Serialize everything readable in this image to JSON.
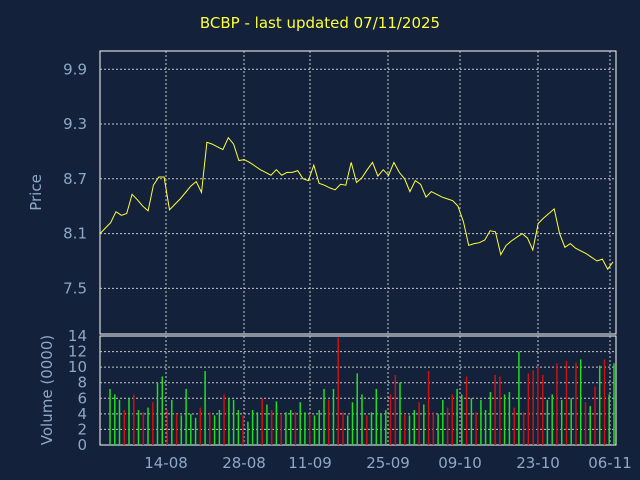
{
  "colors": {
    "background": "#13213a",
    "title": "#ffff3b",
    "axis_text": "#8ea8c8",
    "frame": "#ffffff",
    "grid": "#c8c8c8",
    "price_line": "#ffff3b",
    "volume_up": "#22dd22",
    "volume_down": "#cc1111"
  },
  "chart_data": [
    {
      "type": "line",
      "title": "BCBP - last updated 07/11/2025",
      "xlabel": "",
      "ylabel": "Price",
      "ylim": [
        7.0,
        10.1
      ],
      "yticks": [
        9.9,
        9.3,
        8.7,
        8.1,
        7.5
      ],
      "ytick_labels": [
        "9.9",
        "9.3",
        "8.7",
        "8.1",
        "7.5"
      ],
      "xlim": [
        0,
        86
      ],
      "xticks": [
        11,
        24,
        35,
        48,
        60,
        73,
        85
      ],
      "xtick_labels": [
        "14-08",
        "28-08",
        "11-09",
        "25-09",
        "09-10",
        "23-10",
        "06-11"
      ],
      "grid": true,
      "series": [
        {
          "values": [
            8.1,
            8.16,
            8.22,
            8.34,
            8.3,
            8.32,
            8.53,
            8.47,
            8.4,
            8.35,
            8.63,
            8.72,
            8.72,
            8.36,
            8.42,
            8.48,
            8.55,
            8.62,
            8.67,
            8.55,
            9.1,
            9.08,
            9.05,
            9.02,
            9.15,
            9.08,
            8.9,
            8.91,
            8.88,
            8.84,
            8.8,
            8.77,
            8.74,
            8.8,
            8.74,
            8.77,
            8.77,
            8.79,
            8.7,
            8.68,
            8.85,
            8.65,
            8.63,
            8.6,
            8.58,
            8.64,
            8.63,
            8.88,
            8.66,
            8.71,
            8.8,
            8.88,
            8.73,
            8.8,
            8.74,
            8.88,
            8.77,
            8.7,
            8.56,
            8.68,
            8.64,
            8.5,
            8.56,
            8.53,
            8.5,
            8.48,
            8.46,
            8.4,
            8.23,
            7.97,
            7.99,
            8.0,
            8.03,
            8.13,
            8.12,
            7.87,
            7.97,
            8.02,
            8.06,
            8.1,
            8.05,
            7.92,
            8.21,
            8.27,
            8.32,
            8.37,
            8.1,
            7.95,
            7.99,
            7.94,
            7.91,
            7.88,
            7.84,
            7.8,
            7.82,
            7.71,
            7.79
          ]
        }
      ]
    },
    {
      "type": "bar",
      "title": "",
      "xlabel": "",
      "ylabel": "Volume (0000)",
      "ylim": [
        0,
        14
      ],
      "yticks": [
        0,
        2,
        4,
        6,
        8,
        10,
        12,
        14
      ],
      "ytick_labels": [
        "0",
        "2",
        "4",
        "6",
        "8",
        "10",
        "12",
        "14"
      ],
      "grid": true,
      "series": [
        {
          "values": [
            7.2,
            6.5,
            5.8,
            4.5,
            6.0,
            6.5,
            4.5,
            4.2,
            4.8,
            5.5,
            8.0,
            8.8,
            4.5,
            5.8,
            4.0,
            3.8,
            7.2,
            4.0,
            3.5,
            4.8,
            9.5,
            4.2,
            3.8,
            4.5,
            6.5,
            6.0,
            5.8,
            4.5,
            3.8,
            3.0,
            4.5,
            4.2,
            6.0,
            5.2,
            4.5,
            5.6,
            4.0,
            4.2,
            4.5,
            4.2,
            5.5,
            4.2,
            4.0,
            3.8,
            4.5,
            7.2,
            5.8,
            7.2,
            13.8,
            4.2,
            3.8,
            5.5,
            9.2,
            6.5,
            3.8,
            4.2,
            7.2,
            4.0,
            4.5,
            6.5,
            9.0,
            8.0,
            4.0,
            3.8,
            4.5,
            5.5,
            5.2,
            9.5,
            4.2,
            4.0,
            5.8,
            4.8,
            6.5,
            7.2,
            6.5,
            8.8,
            6.0,
            4.2,
            5.8,
            4.5,
            6.8,
            9.0,
            8.8,
            6.5,
            6.8,
            4.8,
            12.0,
            4.2,
            9.2,
            9.6,
            10.0,
            9.0,
            5.8,
            6.5,
            10.5,
            5.8,
            10.8,
            6.0,
            10.6,
            11.0,
            5.5,
            5.0,
            7.5,
            10.2,
            11.0,
            6.5,
            10.5
          ],
          "directions": [
            "u",
            "u",
            "u",
            "d",
            "u",
            "d",
            "u",
            "d",
            "u",
            "d",
            "u",
            "u",
            "d",
            "u",
            "d",
            "u",
            "u",
            "u",
            "u",
            "d",
            "u",
            "d",
            "u",
            "u",
            "d",
            "u",
            "u",
            "u",
            "d",
            "u",
            "u",
            "u",
            "d",
            "u",
            "d",
            "u",
            "d",
            "u",
            "u",
            "d",
            "u",
            "u",
            "d",
            "u",
            "u",
            "u",
            "d",
            "u",
            "d",
            "d",
            "u",
            "u",
            "u",
            "u",
            "d",
            "u",
            "u",
            "u",
            "u",
            "d",
            "d",
            "u",
            "d",
            "u",
            "u",
            "d",
            "u",
            "d",
            "d",
            "u",
            "u",
            "d",
            "d",
            "u",
            "u",
            "d",
            "u",
            "d",
            "u",
            "u",
            "u",
            "d",
            "d",
            "u",
            "u",
            "d",
            "u",
            "d",
            "d",
            "d",
            "d",
            "d",
            "u",
            "u",
            "d",
            "u",
            "d",
            "u",
            "d",
            "u",
            "d",
            "u",
            "d",
            "u",
            "d",
            "u",
            "u"
          ]
        }
      ]
    }
  ]
}
